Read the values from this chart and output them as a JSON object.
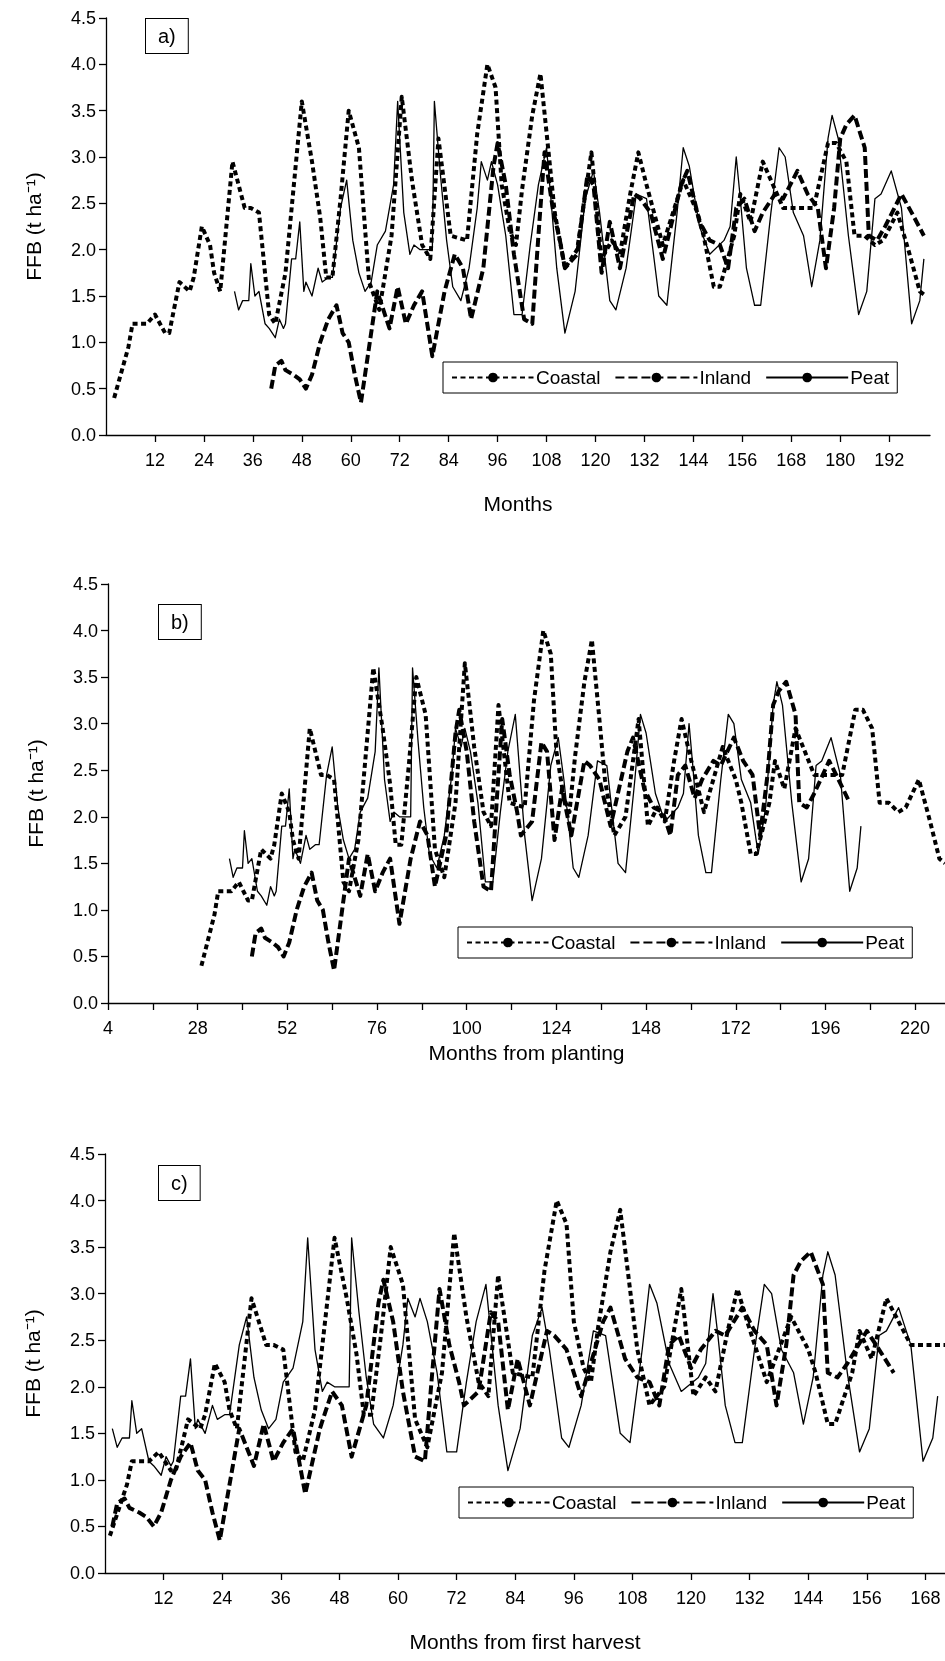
{
  "chart_data": [
    {
      "type": "line",
      "xlabel": "Months",
      "ylabel": "FFB (t ha⁻¹)",
      "annotations": [
        "a)"
      ],
      "legend": "bottom right",
      "grid": false,
      "marker": "none",
      "xlim": [
        0,
        202
      ],
      "xticks": [
        12,
        24,
        36,
        48,
        60,
        72,
        84,
        96,
        108,
        120,
        132,
        144,
        156,
        168,
        180,
        192
      ],
      "ylim": [
        0,
        4.5
      ],
      "yticks": [
        {
          "value": 0,
          "label": "0.0"
        },
        0.5,
        {
          "value": 1,
          "label": "1.0"
        },
        1.5,
        {
          "value": 2,
          "label": "2.0"
        },
        2.5,
        {
          "value": 3,
          "label": "3.0"
        },
        3.5,
        {
          "value": 4,
          "label": "4.0"
        },
        4.5
      ],
      "series": [
        {
          "name": "Coastal",
          "color": "#000000",
          "line_style": "dotted",
          "x": [
            2,
            5.5,
            6.5,
            8,
            10,
            12,
            14.5,
            15.5,
            18,
            20.5,
            21.5,
            23.5,
            25.5,
            26.5,
            28,
            31,
            34,
            35.5,
            37.5,
            40,
            41.5,
            44,
            48,
            50.5,
            52.5,
            54,
            55.5,
            57.5,
            59.5,
            62,
            64.5,
            67,
            70,
            72.5,
            75,
            77.5,
            79.5,
            81.5,
            84.5,
            88.5,
            91,
            93.5,
            95.5,
            97,
            99,
            100.5,
            102,
            104.5,
            106.5,
            108.5,
            110,
            112.5,
            115.5,
            119,
            121.5,
            124,
            126,
            128.5,
            130.5,
            132.5,
            136.5,
            141.5,
            145,
            146.5,
            149,
            150.5,
            154,
            155.5,
            158,
            161,
            163.5,
            166,
            169.5,
            173.5,
            177,
            179,
            181.5,
            183.5,
            186,
            188.5,
            190.5,
            194,
            197,
            199.5,
            201
          ],
          "values": [
            0.4,
            0.95,
            1.2,
            1.2,
            1.2,
            1.3,
            1.1,
            1.1,
            1.65,
            1.55,
            1.7,
            2.25,
            2.05,
            1.75,
            1.55,
            2.95,
            2.45,
            2.45,
            2.4,
            1.3,
            1.2,
            1.75,
            3.6,
            2.95,
            2.35,
            1.7,
            1.7,
            2.55,
            3.5,
            3.1,
            1.65,
            1.35,
            2.15,
            3.65,
            2.75,
            2.05,
            1.9,
            3.2,
            2.15,
            2.1,
            3.25,
            4.0,
            3.75,
            2.7,
            2.2,
            2.05,
            2.65,
            3.45,
            3.9,
            3.05,
            2.4,
            1.8,
            2.0,
            3.05,
            1.9,
            2.1,
            1.95,
            2.6,
            3.05,
            2.7,
            2.05,
            2.75,
            2.4,
            2.15,
            1.6,
            1.6,
            2.15,
            2.6,
            2.3,
            2.95,
            2.7,
            2.45,
            2.45,
            2.45,
            3.15,
            3.15,
            2.95,
            2.15,
            2.15,
            2.05,
            2.1,
            2.4,
            1.95,
            1.55,
            1.5
          ]
        },
        {
          "name": "Inland",
          "color": "#000000",
          "line_style": "dashed",
          "x": [
            40.5,
            41.5,
            43,
            44,
            46,
            47.5,
            49,
            50.5,
            52.5,
            54.5,
            56.5,
            58,
            59.5,
            61,
            62.5,
            65,
            66.5,
            68,
            69.5,
            71.5,
            73.5,
            75.5,
            77.5,
            80,
            83,
            85.5,
            87.5,
            89.5,
            92.5,
            95,
            96,
            98,
            100,
            102.5,
            104.5,
            106,
            107.5,
            109.5,
            111.5,
            112.5,
            115.5,
            118,
            119.5,
            121.5,
            123.5,
            126,
            129.5,
            131,
            133.5,
            136.5,
            141,
            142.5,
            145.5,
            148,
            150.5,
            152.5,
            154.5,
            156.5,
            159,
            161,
            164,
            166,
            169.5,
            172,
            174.5,
            176.5,
            178.5,
            180,
            181.5,
            183.5,
            186,
            187,
            189,
            191,
            195,
            197.5,
            200.5
          ],
          "values": [
            0.5,
            0.75,
            0.8,
            0.7,
            0.65,
            0.6,
            0.5,
            0.65,
            1.0,
            1.25,
            1.4,
            1.1,
            1.0,
            0.65,
            0.35,
            1.1,
            1.55,
            1.35,
            1.15,
            1.6,
            1.2,
            1.4,
            1.55,
            0.85,
            1.55,
            1.95,
            1.8,
            1.25,
            1.8,
            2.9,
            3.15,
            2.7,
            1.95,
            1.25,
            1.2,
            2.15,
            3.05,
            2.45,
            2.05,
            1.8,
            1.95,
            2.8,
            2.7,
            1.75,
            2.3,
            1.8,
            2.6,
            2.55,
            2.4,
            1.9,
            2.7,
            2.85,
            2.3,
            2.1,
            2.05,
            1.8,
            2.45,
            2.55,
            2.2,
            2.4,
            2.6,
            2.55,
            2.85,
            2.6,
            2.45,
            1.8,
            2.45,
            3.2,
            3.35,
            3.45,
            3.1,
            2.15,
            2.1,
            2.25,
            2.6,
            2.4,
            2.15
          ]
        },
        {
          "name": "Peat",
          "color": "#000000",
          "line_style": "solid",
          "x": [
            31.5,
            32.5,
            33.5,
            35,
            35.5,
            36.5,
            37.5,
            39,
            40,
            41.5,
            42.5,
            43.5,
            44,
            45.5,
            46.5,
            47.5,
            48.5,
            49,
            50.5,
            52,
            53,
            54.5,
            55.5,
            57.5,
            59,
            60.5,
            62,
            63.5,
            65,
            66.5,
            68.5,
            70.5,
            71.5,
            73,
            74.5,
            75.5,
            77,
            79,
            80,
            80.5,
            82,
            83.5,
            85,
            87,
            89,
            91,
            92,
            93.5,
            94.5,
            96,
            98,
            100,
            102,
            104,
            106,
            108,
            110.5,
            112.5,
            115,
            117.5,
            119.5,
            121,
            123.5,
            125,
            127.5,
            130,
            132.5,
            135.5,
            137.5,
            140,
            141.5,
            143,
            145.5,
            148,
            151.5,
            153,
            154.5,
            155.5,
            157,
            159,
            160.5,
            163,
            165,
            166.5,
            168.5,
            171,
            173,
            175,
            177,
            178,
            179.5,
            182,
            184.5,
            186.5,
            188.5,
            190,
            192.5,
            195,
            197.5,
            199.5,
            200.5
          ],
          "values": [
            1.55,
            1.35,
            1.45,
            1.45,
            1.85,
            1.5,
            1.55,
            1.2,
            1.15,
            1.05,
            1.25,
            1.15,
            1.2,
            1.9,
            1.9,
            2.3,
            1.55,
            1.65,
            1.5,
            1.8,
            1.65,
            1.7,
            1.7,
            2.45,
            2.75,
            2.1,
            1.75,
            1.55,
            1.65,
            2.05,
            2.2,
            2.7,
            3.6,
            2.4,
            1.95,
            2.05,
            2.0,
            2.0,
            2.0,
            3.6,
            2.8,
            2.1,
            1.6,
            1.45,
            1.8,
            2.45,
            2.95,
            2.75,
            2.95,
            2.7,
            2.15,
            1.3,
            1.3,
            2.05,
            2.7,
            3.1,
            1.8,
            1.1,
            1.55,
            2.55,
            2.85,
            2.4,
            1.45,
            1.35,
            1.8,
            2.6,
            2.55,
            1.5,
            1.4,
            2.4,
            3.1,
            2.9,
            2.25,
            1.95,
            2.1,
            2.25,
            3.0,
            2.55,
            1.8,
            1.4,
            1.4,
            2.4,
            3.1,
            3.0,
            2.4,
            2.15,
            1.6,
            2.1,
            3.2,
            3.45,
            3.2,
            2.15,
            1.3,
            1.55,
            2.55,
            2.6,
            2.85,
            2.45,
            1.2,
            1.45,
            1.9
          ]
        }
      ]
    },
    {
      "type": "line",
      "xlabel": "Months from planting",
      "ylabel": "FFB (t ha⁻¹)",
      "annotations": [
        "b)"
      ],
      "legend": "bottom right",
      "grid": false,
      "marker": "none",
      "xlim": [
        4,
        228
      ],
      "xticks": [
        4,
        {
          "value": 16,
          "label": null
        },
        28,
        {
          "value": 40,
          "label": null
        },
        52,
        {
          "value": 64,
          "label": null
        },
        76,
        {
          "value": 88,
          "label": null
        },
        100,
        {
          "value": 112,
          "label": null
        },
        124,
        {
          "value": 136,
          "label": null
        },
        148,
        {
          "value": 160,
          "label": null
        },
        172,
        {
          "value": 184,
          "label": null
        },
        196,
        {
          "value": 208,
          "label": null
        },
        220
      ],
      "ylim": [
        0,
        4.5
      ],
      "yticks": [
        {
          "value": 0,
          "label": "0.0"
        },
        0.5,
        {
          "value": 1,
          "label": "1.0"
        },
        1.5,
        {
          "value": 2,
          "label": "2.0"
        },
        2.5,
        {
          "value": 3,
          "label": "3.0"
        },
        3.5,
        {
          "value": 4,
          "label": "4.0"
        },
        4.5
      ],
      "series": [
        {
          "name": "Coastal",
          "color": "#000000",
          "line_style": "dotted",
          "x": [
            29,
            32.5,
            33.5,
            35,
            37,
            39,
            41.5,
            42.5,
            45,
            47.5,
            48.5,
            50.5,
            52.5,
            53.5,
            55,
            58,
            61,
            62.5,
            64.5,
            67,
            68.5,
            71,
            75,
            77.5,
            79.5,
            81,
            82.5,
            84.5,
            86.5,
            89,
            91.5,
            94,
            97,
            99.5,
            102,
            104.5,
            106.5,
            108.5,
            111.5,
            115.5,
            118,
            120.5,
            122.5,
            124,
            126,
            127.5,
            129,
            131.5,
            133.5,
            135.5,
            137,
            139.5,
            142.5,
            146,
            148.5,
            151,
            153,
            155.5,
            157.5,
            159.5,
            163.5,
            168.5,
            172,
            173.5,
            176,
            177.5,
            181,
            182.5,
            185,
            188,
            190.5,
            193,
            196.5,
            200.5,
            204,
            206,
            208.5,
            210.5,
            213,
            215.5,
            217.5,
            221,
            224,
            226.5,
            228
          ],
          "values": [
            0.4,
            0.95,
            1.2,
            1.2,
            1.2,
            1.3,
            1.1,
            1.1,
            1.65,
            1.55,
            1.7,
            2.25,
            2.05,
            1.75,
            1.55,
            2.95,
            2.45,
            2.45,
            2.4,
            1.3,
            1.2,
            1.75,
            3.6,
            2.95,
            2.35,
            1.7,
            1.7,
            2.55,
            3.5,
            3.1,
            1.65,
            1.35,
            2.15,
            3.65,
            2.75,
            2.05,
            1.9,
            3.2,
            2.15,
            2.1,
            3.25,
            4.0,
            3.75,
            2.7,
            2.2,
            2.05,
            2.65,
            3.45,
            3.9,
            3.05,
            2.4,
            1.8,
            2.0,
            3.05,
            1.9,
            2.1,
            1.95,
            2.6,
            3.05,
            2.7,
            2.05,
            2.75,
            2.4,
            2.15,
            1.6,
            1.6,
            2.15,
            2.6,
            2.3,
            2.95,
            2.7,
            2.45,
            2.45,
            2.45,
            3.15,
            3.15,
            2.95,
            2.15,
            2.15,
            2.05,
            2.1,
            2.4,
            1.95,
            1.55,
            1.5
          ]
        },
        {
          "name": "Inland",
          "color": "#000000",
          "line_style": "dashed",
          "x": [
            42.5,
            43.5,
            45,
            46,
            48,
            49.5,
            51,
            52.5,
            54.5,
            56.5,
            58.5,
            60,
            61.5,
            63,
            64.5,
            67,
            68.5,
            70,
            71.5,
            73.5,
            75.5,
            77.5,
            79.5,
            82,
            85,
            87.5,
            89.5,
            91.5,
            94.5,
            97,
            98,
            100,
            102,
            104.5,
            106.5,
            108,
            109.5,
            111.5,
            113.5,
            114.5,
            117.5,
            120,
            121.5,
            123.5,
            125.5,
            128,
            131.5,
            133,
            135.5,
            138.5,
            143,
            144.5,
            147.5,
            150,
            152.5,
            154.5,
            156.5,
            158.5,
            161,
            163,
            166,
            168,
            171.5,
            174,
            176.5,
            178.5,
            180.5,
            182,
            183.5,
            185.5,
            188,
            189,
            191,
            193,
            197,
            199.5,
            202.5
          ],
          "values": [
            0.5,
            0.75,
            0.8,
            0.7,
            0.65,
            0.6,
            0.5,
            0.65,
            1.0,
            1.25,
            1.4,
            1.1,
            1.0,
            0.65,
            0.35,
            1.1,
            1.55,
            1.35,
            1.15,
            1.6,
            1.2,
            1.4,
            1.55,
            0.85,
            1.55,
            1.95,
            1.8,
            1.25,
            1.8,
            2.9,
            3.15,
            2.7,
            1.95,
            1.25,
            1.2,
            2.15,
            3.05,
            2.45,
            2.05,
            1.8,
            1.95,
            2.8,
            2.7,
            1.75,
            2.3,
            1.8,
            2.6,
            2.55,
            2.4,
            1.9,
            2.7,
            2.85,
            2.3,
            2.1,
            2.05,
            1.8,
            2.45,
            2.55,
            2.2,
            2.4,
            2.6,
            2.55,
            2.85,
            2.6,
            2.45,
            1.8,
            2.45,
            3.2,
            3.35,
            3.45,
            3.1,
            2.15,
            2.1,
            2.25,
            2.6,
            2.4,
            2.15
          ]
        },
        {
          "name": "Peat",
          "color": "#000000",
          "line_style": "solid",
          "x": [
            36.5,
            37.5,
            38.5,
            40,
            40.5,
            41.5,
            42.5,
            44,
            45,
            46.5,
            47.5,
            48.5,
            49,
            50.5,
            51.5,
            52.5,
            53.5,
            54,
            55.5,
            57,
            58,
            59.5,
            60.5,
            62.5,
            64,
            65.5,
            67,
            68.5,
            70,
            71.5,
            73.5,
            75.5,
            76.5,
            78,
            79.5,
            80.5,
            82,
            84,
            85,
            85.5,
            87,
            88.5,
            90,
            92,
            94,
            96,
            97,
            98.5,
            99.5,
            101,
            103,
            105,
            107,
            109,
            111,
            113,
            115.5,
            117.5,
            120,
            122.5,
            124.5,
            126,
            128.5,
            130,
            132.5,
            135,
            137.5,
            140.5,
            142.5,
            145,
            146.5,
            148,
            150.5,
            153,
            156.5,
            158,
            159.5,
            160.5,
            162,
            164,
            165.5,
            168,
            170,
            171.5,
            173.5,
            176,
            178,
            180,
            182,
            183,
            184.5,
            187,
            189.5,
            191.5,
            193.5,
            195,
            197.5,
            200,
            202.5,
            204.5,
            205.5
          ],
          "values": [
            1.55,
            1.35,
            1.45,
            1.45,
            1.85,
            1.5,
            1.55,
            1.2,
            1.15,
            1.05,
            1.25,
            1.15,
            1.2,
            1.9,
            1.9,
            2.3,
            1.55,
            1.65,
            1.5,
            1.8,
            1.65,
            1.7,
            1.7,
            2.45,
            2.75,
            2.1,
            1.75,
            1.55,
            1.65,
            2.05,
            2.2,
            2.7,
            3.6,
            2.4,
            1.95,
            2.05,
            2.0,
            2.0,
            2.0,
            3.6,
            2.8,
            2.1,
            1.6,
            1.45,
            1.8,
            2.45,
            2.95,
            2.75,
            2.95,
            2.7,
            2.15,
            1.3,
            1.3,
            2.05,
            2.7,
            3.1,
            1.8,
            1.1,
            1.55,
            2.55,
            2.85,
            2.4,
            1.45,
            1.35,
            1.8,
            2.6,
            2.55,
            1.5,
            1.4,
            2.4,
            3.1,
            2.9,
            2.25,
            1.95,
            2.1,
            2.25,
            3.0,
            2.55,
            1.8,
            1.4,
            1.4,
            2.4,
            3.1,
            3.0,
            2.4,
            2.15,
            1.6,
            2.1,
            3.2,
            3.45,
            3.2,
            2.15,
            1.3,
            1.55,
            2.55,
            2.6,
            2.85,
            2.45,
            1.2,
            1.45,
            1.9
          ]
        }
      ]
    },
    {
      "type": "line",
      "xlabel": "Months from first harvest",
      "ylabel": "FFB (t ha⁻¹)",
      "annotations": [
        "c)"
      ],
      "legend": "bottom right",
      "grid": false,
      "marker": "none",
      "xlim": [
        0,
        172
      ],
      "xticks": [
        12,
        24,
        36,
        48,
        60,
        72,
        84,
        96,
        108,
        120,
        132,
        144,
        156,
        168
      ],
      "ylim": [
        0,
        4.5
      ],
      "yticks": [
        {
          "value": 0,
          "label": "0.0"
        },
        0.5,
        {
          "value": 1,
          "label": "1.0"
        },
        1.5,
        {
          "value": 2,
          "label": "2.0"
        },
        2.5,
        {
          "value": 3,
          "label": "3.0"
        },
        3.5,
        {
          "value": 4,
          "label": "4.0"
        },
        4.5
      ],
      "series": [
        {
          "name": "Coastal",
          "color": "#000000",
          "line_style": "dotted",
          "x": [
            1,
            4.5,
            5.5,
            7,
            9,
            11,
            13.5,
            14.5,
            17,
            19.5,
            20.5,
            22.5,
            24.5,
            25.5,
            27,
            30,
            33,
            34.5,
            36.5,
            39,
            40.5,
            43,
            47,
            49.5,
            51.5,
            53,
            54.5,
            56.5,
            58.5,
            61,
            63.5,
            66,
            69,
            71.5,
            74,
            76.5,
            78.5,
            80.5,
            83.5,
            87.5,
            90,
            92.5,
            94.5,
            96,
            98,
            99.5,
            101,
            103.5,
            105.5,
            107.5,
            109,
            111.5,
            114.5,
            118,
            120.5,
            123,
            125,
            127.5,
            129.5,
            131.5,
            135.5,
            140.5,
            144,
            145.5,
            148,
            149.5,
            153,
            154.5,
            157,
            160,
            162.5,
            165,
            168.5,
            172
          ],
          "values": [
            0.4,
            0.95,
            1.2,
            1.2,
            1.2,
            1.3,
            1.1,
            1.1,
            1.65,
            1.55,
            1.7,
            2.25,
            2.05,
            1.75,
            1.55,
            2.95,
            2.45,
            2.45,
            2.4,
            1.3,
            1.2,
            1.75,
            3.6,
            2.95,
            2.35,
            1.7,
            1.7,
            2.55,
            3.5,
            3.1,
            1.65,
            1.35,
            2.15,
            3.65,
            2.75,
            2.05,
            1.9,
            3.2,
            2.15,
            2.1,
            3.25,
            4.0,
            3.75,
            2.7,
            2.2,
            2.05,
            2.65,
            3.45,
            3.9,
            3.05,
            2.4,
            1.8,
            2.0,
            3.05,
            1.9,
            2.1,
            1.95,
            2.6,
            3.05,
            2.7,
            2.05,
            2.75,
            2.4,
            2.15,
            1.6,
            1.6,
            2.15,
            2.6,
            2.3,
            2.95,
            2.7,
            2.45,
            2.45,
            2.45
          ]
        },
        {
          "name": "Inland",
          "color": "#000000",
          "line_style": "dashed",
          "x": [
            1.5,
            2.5,
            4,
            5,
            7,
            8.5,
            10,
            11.5,
            13.5,
            15.5,
            17.5,
            19,
            20.5,
            22,
            23.5,
            26,
            27.5,
            29,
            30.5,
            32.5,
            34.5,
            36.5,
            38.5,
            41,
            44,
            46.5,
            48.5,
            50.5,
            53.5,
            56,
            57,
            59,
            61,
            63.5,
            65.5,
            67,
            68.5,
            70.5,
            72.5,
            73.5,
            76.5,
            79,
            80.5,
            82.5,
            84.5,
            87,
            90.5,
            92,
            94.5,
            97.5,
            102,
            103.5,
            106.5,
            109,
            111.5,
            113.5,
            115.5,
            117.5,
            120,
            122,
            125,
            127,
            130.5,
            133,
            135.5,
            137.5,
            139.5,
            141,
            142.5,
            144.5,
            147,
            148,
            150,
            152,
            156,
            158.5,
            161.5
          ],
          "values": [
            0.5,
            0.75,
            0.8,
            0.7,
            0.65,
            0.6,
            0.5,
            0.65,
            1.0,
            1.25,
            1.4,
            1.1,
            1.0,
            0.65,
            0.35,
            1.1,
            1.55,
            1.35,
            1.15,
            1.6,
            1.2,
            1.4,
            1.55,
            0.85,
            1.55,
            1.95,
            1.8,
            1.25,
            1.8,
            2.9,
            3.15,
            2.7,
            1.95,
            1.25,
            1.2,
            2.15,
            3.05,
            2.45,
            2.05,
            1.8,
            1.95,
            2.8,
            2.7,
            1.75,
            2.3,
            1.8,
            2.6,
            2.55,
            2.4,
            1.9,
            2.7,
            2.85,
            2.3,
            2.1,
            2.05,
            1.8,
            2.45,
            2.55,
            2.2,
            2.4,
            2.6,
            2.55,
            2.85,
            2.6,
            2.45,
            1.8,
            2.45,
            3.2,
            3.35,
            3.45,
            3.1,
            2.15,
            2.1,
            2.25,
            2.6,
            2.4,
            2.15
          ]
        },
        {
          "name": "Peat",
          "color": "#000000",
          "line_style": "solid",
          "x": [
            1.5,
            2.5,
            3.5,
            5,
            5.5,
            6.5,
            7.5,
            9,
            10,
            11.5,
            12.5,
            13.5,
            14,
            15.5,
            16.5,
            17.5,
            18.5,
            19,
            20.5,
            22,
            23,
            24.5,
            25.5,
            27.5,
            29,
            30.5,
            32,
            33.5,
            35,
            36.5,
            38.5,
            40.5,
            41.5,
            43,
            44.5,
            45.5,
            47,
            49,
            50,
            50.5,
            52,
            53.5,
            55,
            57,
            59,
            61,
            62,
            63.5,
            64.5,
            66,
            68,
            70,
            72,
            74,
            76,
            78,
            80.5,
            82.5,
            85,
            87.5,
            89.5,
            91,
            93.5,
            95,
            97.5,
            100,
            102.5,
            105.5,
            107.5,
            110,
            111.5,
            113,
            115.5,
            118,
            121.5,
            123,
            124.5,
            125.5,
            127,
            129,
            130.5,
            133,
            135,
            136.5,
            138.5,
            141,
            143,
            145,
            147,
            148,
            149.5,
            152,
            154.5,
            156.5,
            158.5,
            160,
            162.5,
            165,
            167.5,
            169.5,
            170.5
          ],
          "values": [
            1.55,
            1.35,
            1.45,
            1.45,
            1.85,
            1.5,
            1.55,
            1.2,
            1.15,
            1.05,
            1.25,
            1.15,
            1.2,
            1.9,
            1.9,
            2.3,
            1.55,
            1.65,
            1.5,
            1.8,
            1.65,
            1.7,
            1.7,
            2.45,
            2.75,
            2.1,
            1.75,
            1.55,
            1.65,
            2.05,
            2.2,
            2.7,
            3.6,
            2.4,
            1.95,
            2.05,
            2.0,
            2.0,
            2.0,
            3.6,
            2.8,
            2.1,
            1.6,
            1.45,
            1.8,
            2.45,
            2.95,
            2.75,
            2.95,
            2.7,
            2.15,
            1.3,
            1.3,
            2.05,
            2.7,
            3.1,
            1.8,
            1.1,
            1.55,
            2.55,
            2.85,
            2.4,
            1.45,
            1.35,
            1.8,
            2.6,
            2.55,
            1.5,
            1.4,
            2.4,
            3.1,
            2.9,
            2.25,
            1.95,
            2.1,
            2.25,
            3.0,
            2.55,
            1.8,
            1.4,
            1.4,
            2.4,
            3.1,
            3.0,
            2.4,
            2.15,
            1.6,
            2.1,
            3.2,
            3.45,
            3.2,
            2.15,
            1.3,
            1.55,
            2.55,
            2.6,
            2.85,
            2.45,
            1.2,
            1.45,
            1.9
          ]
        }
      ]
    }
  ]
}
